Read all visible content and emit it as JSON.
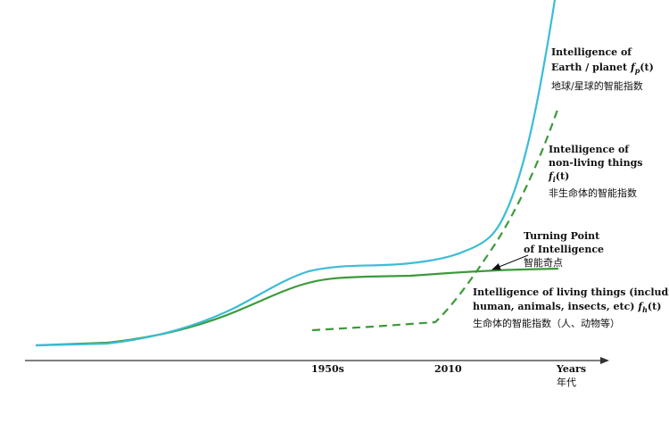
{
  "colors": {
    "background": "#ffffff",
    "planet_curve": "#3bbcd6",
    "living_curve": "#3c9a3a",
    "nonliving_curve": "#3c9a3a",
    "axis": "#333333",
    "text": "#111111"
  },
  "curves": {
    "planet": {
      "name": "Intelligence of Earth / planet",
      "style": "solid"
    },
    "nonliving": {
      "name": "Intelligence of non-living things",
      "style": "dashed"
    },
    "living": {
      "name": "Intelligence of living things",
      "style": "solid"
    }
  },
  "axis": {
    "ticks": [
      "1950s",
      "2010"
    ],
    "label_en": "Years",
    "label_cn": "年代"
  },
  "labels": {
    "planet": {
      "line1": "Intelligence of",
      "line2_prefix": "Earth / planet ",
      "func": "f",
      "sub": "p",
      "arg": "(t)",
      "cn": "地球/星球的智能指数"
    },
    "nonliving": {
      "line1": "Intelligence of",
      "line2": "non-living things",
      "func": "f",
      "sub": "i",
      "arg": "(t)",
      "cn": "非生命体的智能指数"
    },
    "turning": {
      "line1": "Turning Point",
      "line2": "of Intelligence",
      "cn": "智能奇点"
    },
    "living": {
      "line1": "Intelligence of living things (including",
      "line2_prefix": "human, animals, insects, etc) ",
      "func": "f",
      "sub": "h",
      "arg": "(t)",
      "cn": "生命体的智能指数（人、动物等）"
    }
  }
}
